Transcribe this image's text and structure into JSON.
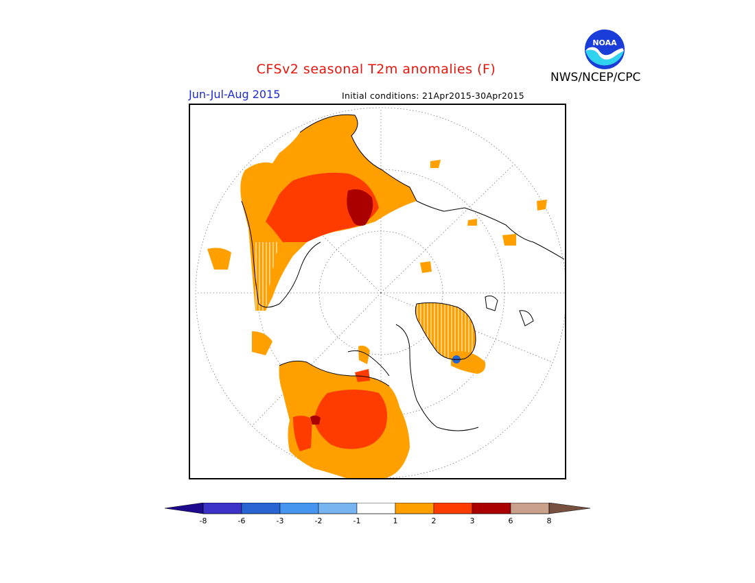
{
  "header": {
    "title": "CFSv2 seasonal T2m anomalies (F)",
    "period": "Jun-Jul-Aug 2015",
    "initial_conditions": "Initial conditions: 21Apr2015-30Apr2015",
    "agency": "NWS/NCEP/CPC",
    "logo_text": "NOAA"
  },
  "colorbar": {
    "colors": [
      "#1e0a8c",
      "#3c32c8",
      "#2864d2",
      "#4696f0",
      "#78b4f0",
      "#ffffff",
      "#ffa000",
      "#ff3c00",
      "#aa0000",
      "#c8a08c",
      "#785040"
    ],
    "ticks": [
      "-8",
      "-6",
      "-3",
      "-2",
      "-1",
      "1",
      "2",
      "3",
      "6",
      "8"
    ]
  },
  "map": {
    "projection": "polar-stereographic",
    "anomaly_colors": {
      "light_warm": "#ffa000",
      "warm": "#ff3c00",
      "very_warm": "#aa0000",
      "cold": "#2864d2"
    }
  }
}
